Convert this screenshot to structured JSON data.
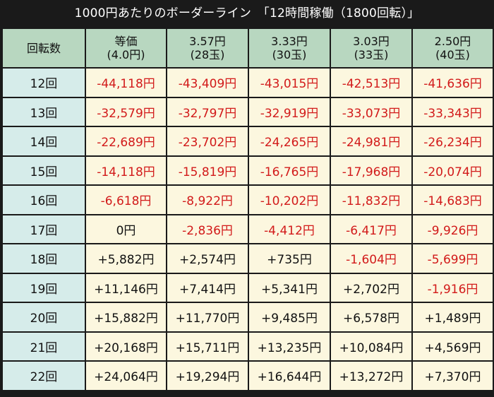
{
  "title": "1000円あたりのボーダーライン　「12時間稼働（1800回転）」",
  "header": {
    "corner": "回転数",
    "columns": [
      {
        "line1": "等価",
        "line2": "(4.0円)"
      },
      {
        "line1": "3.57円",
        "line2": "(28玉)"
      },
      {
        "line1": "3.33円",
        "line2": "(30玉)"
      },
      {
        "line1": "3.03円",
        "line2": "(33玉)"
      },
      {
        "line1": "2.50円",
        "line2": "(40玉)"
      }
    ]
  },
  "rows": [
    {
      "label": "12回",
      "values": [
        "-44,118円",
        "-43,409円",
        "-43,015円",
        "-42,513円",
        "-41,636円"
      ]
    },
    {
      "label": "13回",
      "values": [
        "-32,579円",
        "-32,797円",
        "-32,919円",
        "-33,073円",
        "-33,343円"
      ]
    },
    {
      "label": "14回",
      "values": [
        "-22,689円",
        "-23,702円",
        "-24,265円",
        "-24,981円",
        "-26,234円"
      ]
    },
    {
      "label": "15回",
      "values": [
        "-14,118円",
        "-15,819円",
        "-16,765円",
        "-17,968円",
        "-20,074円"
      ]
    },
    {
      "label": "16回",
      "values": [
        "-6,618円",
        "-8,922円",
        "-10,202円",
        "-11,832円",
        "-14,683円"
      ]
    },
    {
      "label": "17回",
      "values": [
        "0円",
        "-2,836円",
        "-4,412円",
        "-6,417円",
        "-9,926円"
      ]
    },
    {
      "label": "18回",
      "values": [
        "+5,882円",
        "+2,574円",
        "+735円",
        "-1,604円",
        "-5,699円"
      ]
    },
    {
      "label": "19回",
      "values": [
        "+11,146円",
        "+7,414円",
        "+5,341円",
        "+2,702円",
        "-1,916円"
      ]
    },
    {
      "label": "20回",
      "values": [
        "+15,882円",
        "+11,770円",
        "+9,485円",
        "+6,578円",
        "+1,489円"
      ]
    },
    {
      "label": "21回",
      "values": [
        "+20,168円",
        "+15,711円",
        "+13,235円",
        "+10,084円",
        "+4,569円"
      ]
    },
    {
      "label": "22回",
      "values": [
        "+24,064円",
        "+19,294円",
        "+16,644円",
        "+13,272円",
        "+7,370円"
      ]
    }
  ],
  "colors": {
    "negative_text": "#d21a1a",
    "positive_text": "#111111",
    "header_bg": "#b8d7c0",
    "rowhead_bg": "#d6ecea",
    "cell_bg": "#fcf7df",
    "frame_bg": "#1a1a1a"
  }
}
